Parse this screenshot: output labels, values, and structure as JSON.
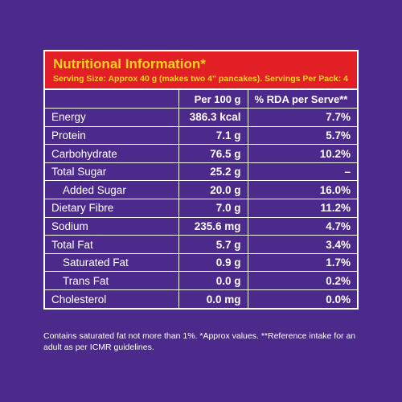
{
  "panel": {
    "title": "Nutritional Information*",
    "subtitle": "Serving Size: Approx 40 g (makes two 4\" pancakes). Servings Per Pack: 4",
    "columns": {
      "name": "",
      "per100g": "Per 100 g",
      "rda": "% RDA per Serve**"
    },
    "rows": [
      {
        "name": "Energy",
        "per100g": "386.3 kcal",
        "rda": "7.7%",
        "indent": false
      },
      {
        "name": "Protein",
        "per100g": "7.1 g",
        "rda": "5.7%",
        "indent": false
      },
      {
        "name": "Carbohydrate",
        "per100g": "76.5 g",
        "rda": "10.2%",
        "indent": false
      },
      {
        "name": "Total Sugar",
        "per100g": "25.2 g",
        "rda": "–",
        "indent": false
      },
      {
        "name": "Added Sugar",
        "per100g": "20.0 g",
        "rda": "16.0%",
        "indent": true
      },
      {
        "name": "Dietary Fibre",
        "per100g": "7.0 g",
        "rda": "11.2%",
        "indent": false
      },
      {
        "name": "Sodium",
        "per100g": "235.6 mg",
        "rda": "4.7%",
        "indent": false
      },
      {
        "name": "Total Fat",
        "per100g": "5.7 g",
        "rda": "3.4%",
        "indent": false
      },
      {
        "name": "Saturated Fat",
        "per100g": "0.9 g",
        "rda": "1.7%",
        "indent": true
      },
      {
        "name": "Trans Fat",
        "per100g": "0.0 g",
        "rda": "0.2%",
        "indent": true
      },
      {
        "name": "Cholesterol",
        "per100g": "0.0 mg",
        "rda": "0.0%",
        "indent": false
      }
    ],
    "footnote": "Contains saturated fat not more than 1%. *Approx values. **Reference intake for an adult as per ICMR guidelines."
  },
  "colors": {
    "background": "#4b2a8c",
    "header": "#e31f26",
    "title_text": "#ffd21f",
    "border": "#ffffff"
  }
}
